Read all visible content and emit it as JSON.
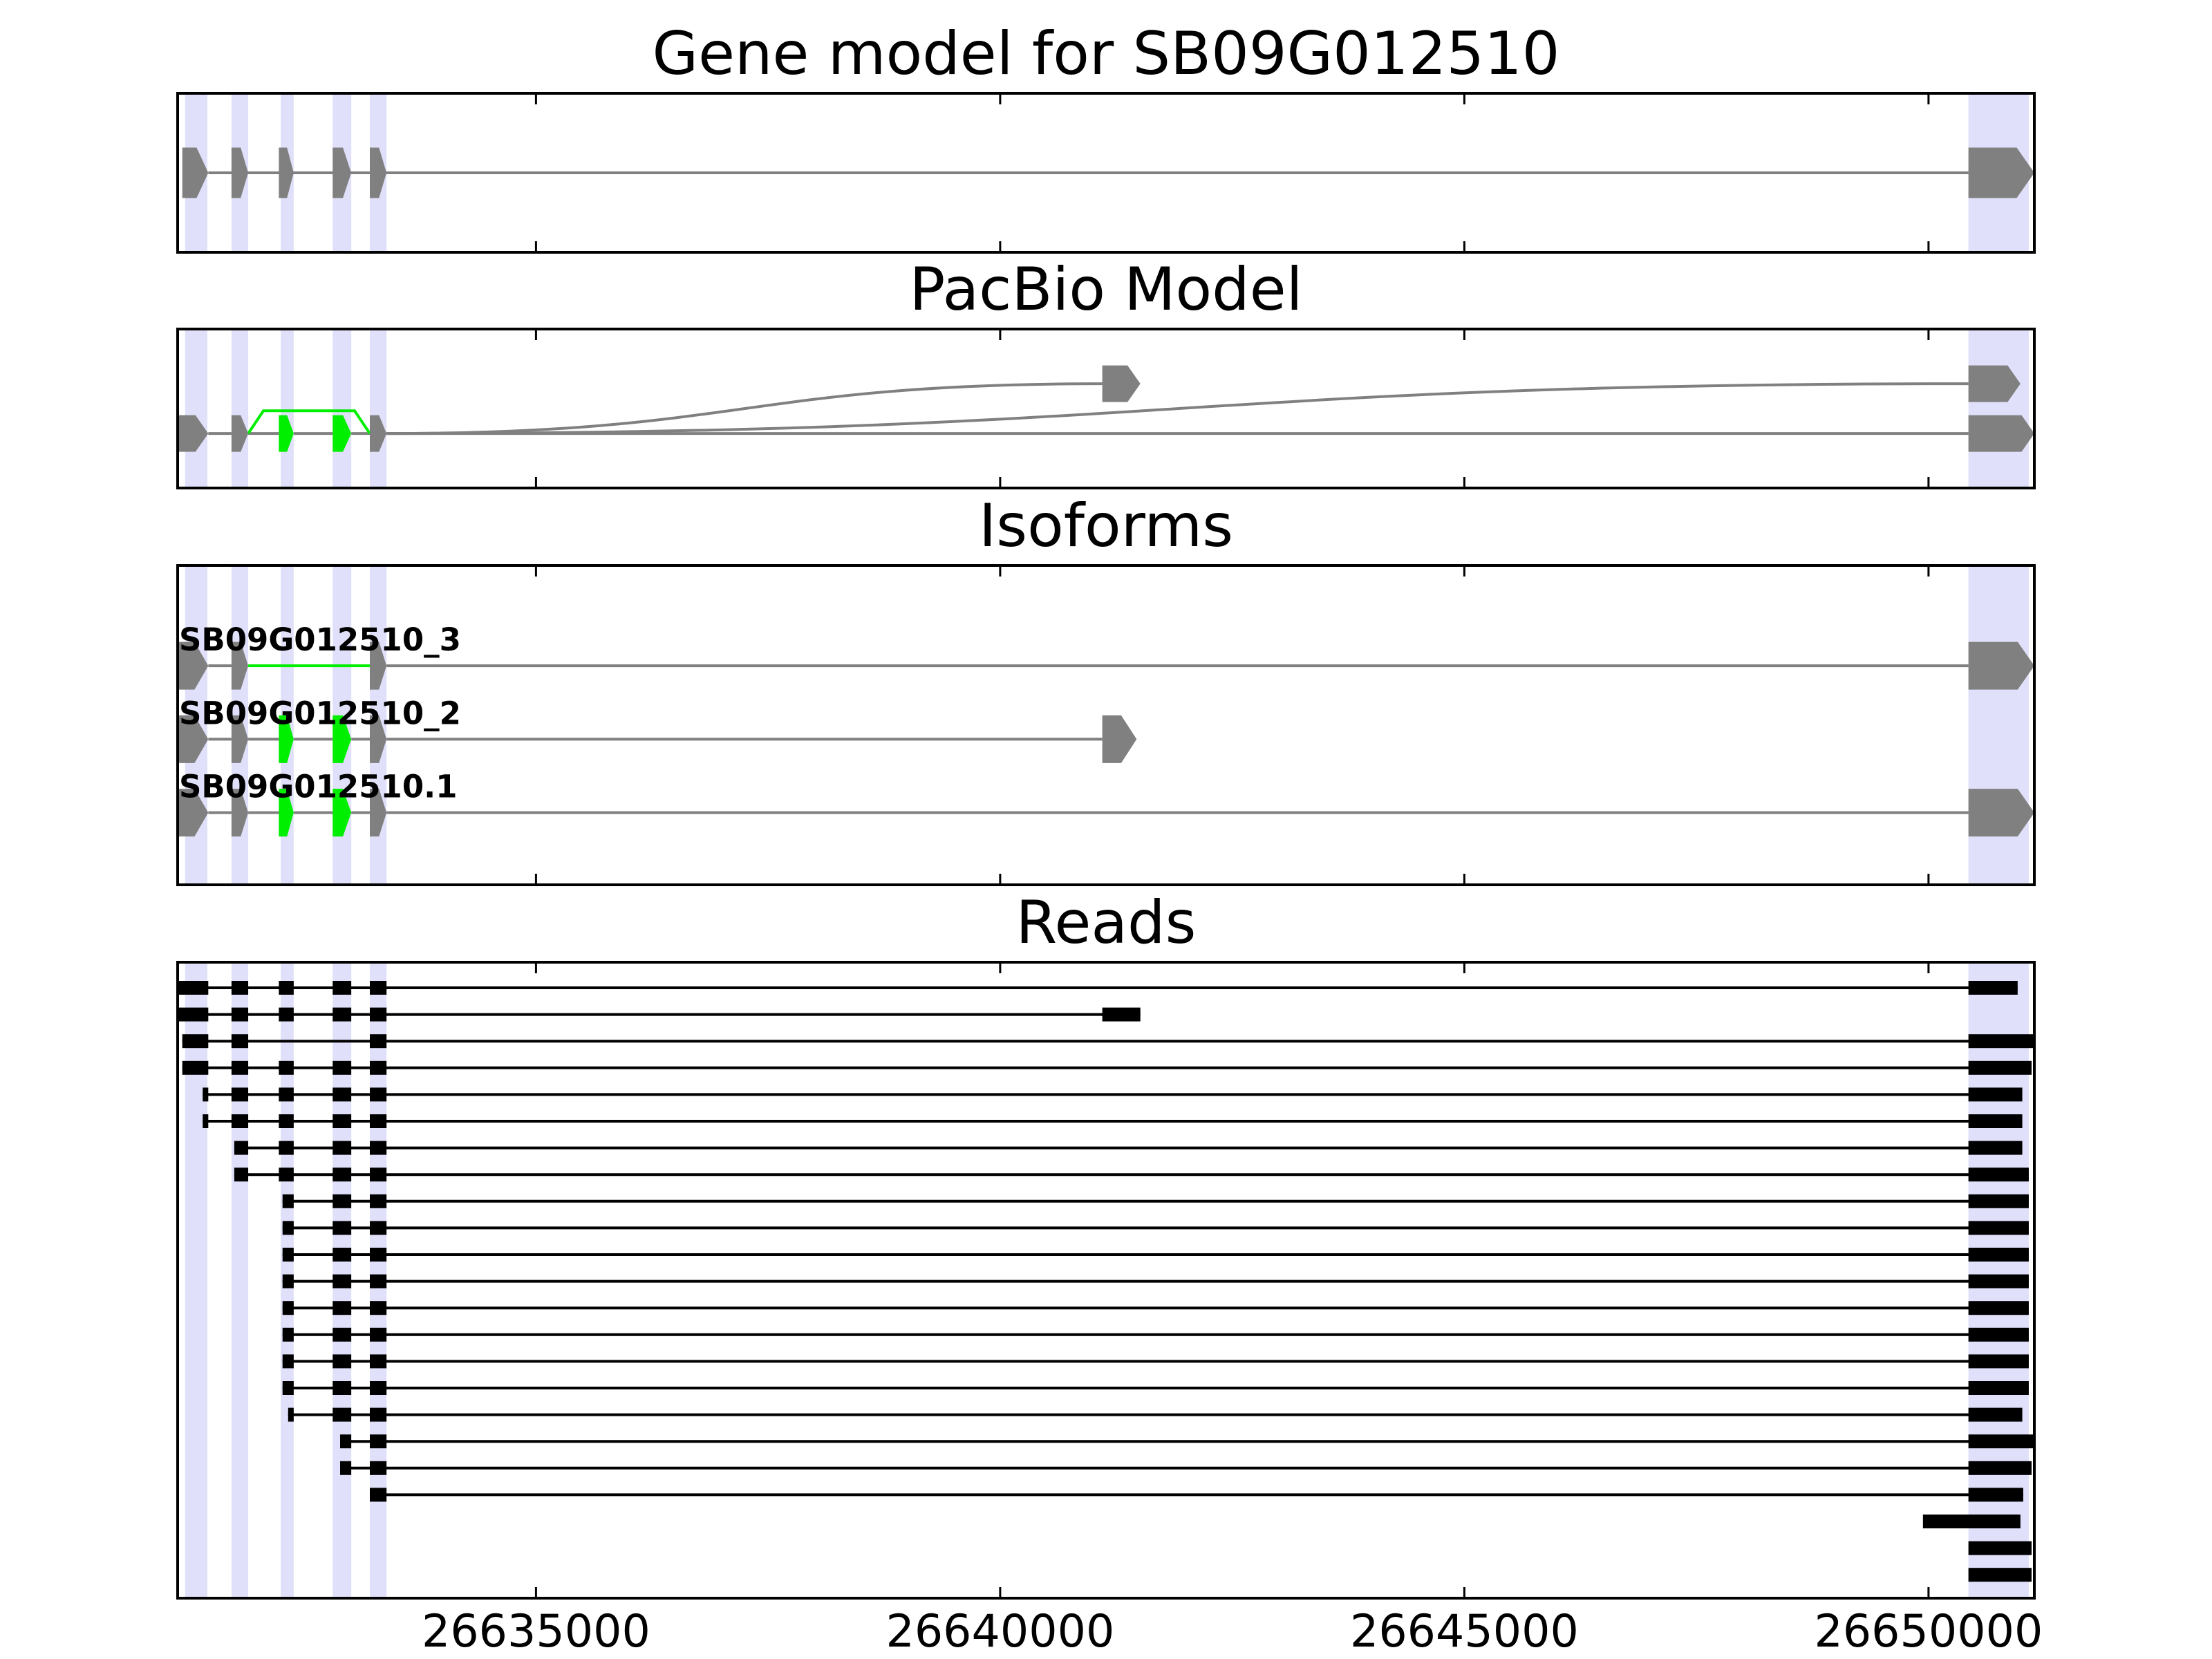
{
  "chart_data": [
    {
      "type": "gene",
      "title": "Gene model for SB09G012510",
      "xlim": [
        26631140,
        26651140
      ],
      "color": "#808080",
      "highlight_color": "#e0e0fa",
      "highlights": [
        [
          26631220,
          26631460
        ],
        [
          26631720,
          26631900
        ],
        [
          26632250,
          26632390
        ],
        [
          26632810,
          26633010
        ],
        [
          26633210,
          26633390
        ],
        [
          26650430,
          26651080
        ]
      ],
      "exons": [
        [
          26631190,
          26631470
        ],
        [
          26631720,
          26631900
        ],
        [
          26632230,
          26632390
        ],
        [
          26632810,
          26633010
        ],
        [
          26633210,
          26633390
        ],
        [
          26650430,
          26651140
        ]
      ]
    },
    {
      "type": "graph",
      "title": "PacBio Model",
      "xlim": [
        26631140,
        26651140
      ],
      "nodes": [
        {
          "start": 26631140,
          "end": 26631470,
          "level": 0,
          "color": "#808080"
        },
        {
          "start": 26631720,
          "end": 26631900,
          "level": 0,
          "color": "#808080"
        },
        {
          "start": 26632230,
          "end": 26632390,
          "level": 0,
          "color": "#00ee00"
        },
        {
          "start": 26632810,
          "end": 26633010,
          "level": 0,
          "color": "#00ee00"
        },
        {
          "start": 26633210,
          "end": 26633390,
          "level": 0,
          "color": "#808080"
        },
        {
          "start": 26650430,
          "end": 26651140,
          "level": 0,
          "color": "#808080"
        },
        {
          "start": 26641100,
          "end": 26641510,
          "level": 1,
          "color": "#808080"
        },
        {
          "start": 26650430,
          "end": 26650990,
          "level": 1,
          "color": "#808080"
        }
      ],
      "edges": [
        {
          "from": 0,
          "to": 1,
          "color": "#808080"
        },
        {
          "from": 1,
          "to": 2,
          "color": "#808080"
        },
        {
          "from": 2,
          "to": 3,
          "color": "#808080"
        },
        {
          "from": 3,
          "to": 4,
          "color": "#808080"
        },
        {
          "from": 4,
          "to": 5,
          "color": "#808080"
        },
        {
          "from": 1,
          "to": 4,
          "color": "#00ee00"
        },
        {
          "from": 4,
          "to": 6,
          "color": "#808080"
        },
        {
          "from": 4,
          "to": 7,
          "color": "#808080"
        }
      ]
    },
    {
      "type": "isoforms",
      "title": "Isoforms",
      "xlim": [
        26631140,
        26651140
      ],
      "isoforms": [
        {
          "name": "SB09G012510_3",
          "exons": [
            [
              26631140,
              26631470
            ],
            [
              26631720,
              26631900
            ],
            [
              26633210,
              26633390
            ],
            [
              26650430,
              26651140
            ]
          ],
          "exon_colors": [
            "#808080",
            "#808080",
            "#808080",
            "#808080"
          ],
          "intron_colors": [
            "#808080",
            "#00ee00",
            "#808080"
          ]
        },
        {
          "name": "SB09G012510_2",
          "exons": [
            [
              26631140,
              26631470
            ],
            [
              26631720,
              26631900
            ],
            [
              26632230,
              26632390
            ],
            [
              26632810,
              26633010
            ],
            [
              26633210,
              26633390
            ],
            [
              26641100,
              26641470
            ]
          ],
          "exon_colors": [
            "#808080",
            "#808080",
            "#00ee00",
            "#00ee00",
            "#808080",
            "#808080"
          ],
          "intron_colors": [
            "#808080",
            "#808080",
            "#808080",
            "#808080",
            "#808080"
          ]
        },
        {
          "name": "SB09G012510.1",
          "exons": [
            [
              26631140,
              26631470
            ],
            [
              26631720,
              26631900
            ],
            [
              26632230,
              26632390
            ],
            [
              26632810,
              26633010
            ],
            [
              26633210,
              26633390
            ],
            [
              26650430,
              26651140
            ]
          ],
          "exon_colors": [
            "#808080",
            "#808080",
            "#00ee00",
            "#00ee00",
            "#808080",
            "#808080"
          ],
          "intron_colors": [
            "#808080",
            "#808080",
            "#808080",
            "#808080",
            "#808080"
          ]
        }
      ]
    },
    {
      "type": "reads",
      "title": "Reads",
      "xlim": [
        26631140,
        26651140
      ],
      "color": "#000000",
      "xticks": [
        26635000,
        26640000,
        26645000,
        26650000
      ],
      "reads": [
        [
          [
            26631140,
            26631470
          ],
          [
            26631720,
            26631900
          ],
          [
            26632230,
            26632390
          ],
          [
            26632810,
            26633010
          ],
          [
            26633210,
            26633390
          ],
          [
            26650430,
            26650960
          ]
        ],
        [
          [
            26631140,
            26631470
          ],
          [
            26631720,
            26631900
          ],
          [
            26632230,
            26632390
          ],
          [
            26632810,
            26633010
          ],
          [
            26633210,
            26633390
          ],
          [
            26641100,
            26641510
          ]
        ],
        [
          [
            26631190,
            26631470
          ],
          [
            26631720,
            26631900
          ],
          [
            26633210,
            26633390
          ],
          [
            26650430,
            26651140
          ]
        ],
        [
          [
            26631190,
            26631470
          ],
          [
            26631720,
            26631900
          ],
          [
            26632230,
            26632390
          ],
          [
            26632810,
            26633010
          ],
          [
            26633210,
            26633390
          ],
          [
            26650430,
            26651110
          ]
        ],
        [
          [
            26631410,
            26631470
          ],
          [
            26631720,
            26631900
          ],
          [
            26632230,
            26632390
          ],
          [
            26632810,
            26633010
          ],
          [
            26633210,
            26633390
          ],
          [
            26650430,
            26651010
          ]
        ],
        [
          [
            26631410,
            26631470
          ],
          [
            26631720,
            26631900
          ],
          [
            26632230,
            26632390
          ],
          [
            26632810,
            26633010
          ],
          [
            26633210,
            26633390
          ],
          [
            26650430,
            26651010
          ]
        ],
        [
          [
            26631750,
            26631900
          ],
          [
            26632230,
            26632390
          ],
          [
            26632810,
            26633010
          ],
          [
            26633210,
            26633390
          ],
          [
            26650430,
            26651010
          ]
        ],
        [
          [
            26631750,
            26631900
          ],
          [
            26632230,
            26632390
          ],
          [
            26632810,
            26633010
          ],
          [
            26633210,
            26633390
          ],
          [
            26650430,
            26651080
          ]
        ],
        [
          [
            26632270,
            26632390
          ],
          [
            26632810,
            26633010
          ],
          [
            26633210,
            26633390
          ],
          [
            26650430,
            26651080
          ]
        ],
        [
          [
            26632270,
            26632390
          ],
          [
            26632810,
            26633010
          ],
          [
            26633210,
            26633390
          ],
          [
            26650430,
            26651080
          ]
        ],
        [
          [
            26632270,
            26632390
          ],
          [
            26632810,
            26633010
          ],
          [
            26633210,
            26633390
          ],
          [
            26650430,
            26651080
          ]
        ],
        [
          [
            26632270,
            26632390
          ],
          [
            26632810,
            26633010
          ],
          [
            26633210,
            26633390
          ],
          [
            26650430,
            26651080
          ]
        ],
        [
          [
            26632270,
            26632390
          ],
          [
            26632810,
            26633010
          ],
          [
            26633210,
            26633390
          ],
          [
            26650430,
            26651080
          ]
        ],
        [
          [
            26632270,
            26632390
          ],
          [
            26632810,
            26633010
          ],
          [
            26633210,
            26633390
          ],
          [
            26650430,
            26651080
          ]
        ],
        [
          [
            26632270,
            26632390
          ],
          [
            26632810,
            26633010
          ],
          [
            26633210,
            26633390
          ],
          [
            26650430,
            26651080
          ]
        ],
        [
          [
            26632270,
            26632390
          ],
          [
            26632810,
            26633010
          ],
          [
            26633210,
            26633390
          ],
          [
            26650430,
            26651080
          ]
        ],
        [
          [
            26632330,
            26632390
          ],
          [
            26632810,
            26633010
          ],
          [
            26633210,
            26633390
          ],
          [
            26650430,
            26651010
          ]
        ],
        [
          [
            26632890,
            26633010
          ],
          [
            26633210,
            26633390
          ],
          [
            26650430,
            26651140
          ]
        ],
        [
          [
            26632890,
            26633010
          ],
          [
            26633210,
            26633390
          ],
          [
            26650430,
            26651110
          ]
        ],
        [
          [
            26633210,
            26633390
          ],
          [
            26650430,
            26651020
          ]
        ],
        [
          [
            26649940,
            26650990
          ]
        ],
        [
          [
            26650430,
            26651110
          ]
        ],
        [
          [
            26650430,
            26651110
          ]
        ]
      ]
    }
  ]
}
